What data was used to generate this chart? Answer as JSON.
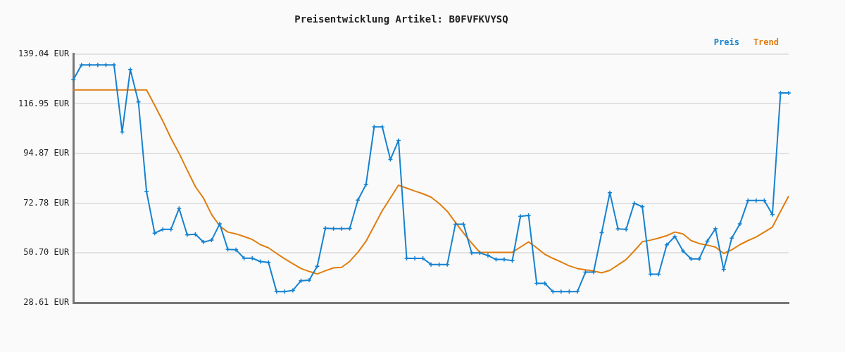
{
  "chart_data": {
    "type": "line",
    "title": "Preisentwicklung Artikel: B0FVFKVYSQ",
    "categories": [
      null,
      null,
      null,
      null,
      null,
      null,
      null,
      null,
      null,
      null,
      null,
      null,
      null,
      null,
      null,
      null,
      null,
      null,
      null,
      null,
      null,
      null,
      null,
      null,
      null,
      null,
      null,
      null,
      null,
      null,
      null,
      null,
      null,
      null,
      null,
      null,
      null,
      null,
      null,
      null,
      null,
      null,
      null,
      null,
      null,
      null,
      null,
      null,
      null,
      null,
      null,
      null,
      null,
      null,
      null,
      null,
      null,
      null,
      null,
      null,
      null,
      null,
      null,
      null,
      null,
      null,
      null,
      null,
      null,
      null,
      null,
      null,
      null,
      null,
      null,
      null,
      null,
      null,
      null,
      null,
      null,
      null,
      null,
      null,
      null,
      null,
      null,
      null,
      null
    ],
    "series": [
      {
        "name": "Preis",
        "color": "#1582d0",
        "marker": "cross",
        "values": [
          127.7,
          134.2,
          134.2,
          134.2,
          134.2,
          134.2,
          104.4,
          132.2,
          117.8,
          77.9,
          59.5,
          61.2,
          61.2,
          70.5,
          58.8,
          59.0,
          55.6,
          56.4,
          63.6,
          52.3,
          52.1,
          48.4,
          48.4,
          46.9,
          46.5,
          33.5,
          33.5,
          34.1,
          38.4,
          38.6,
          44.8,
          61.7,
          61.5,
          61.5,
          61.6,
          74.2,
          81.1,
          106.7,
          106.7,
          92.2,
          100.7,
          48.3,
          48.3,
          48.3,
          45.6,
          45.6,
          45.6,
          63.5,
          63.5,
          50.7,
          50.7,
          49.6,
          47.8,
          47.8,
          47.3,
          67.0,
          67.4,
          37.2,
          37.2,
          33.5,
          33.5,
          33.5,
          33.5,
          42.2,
          42.2,
          59.7,
          77.5,
          61.4,
          61.2,
          72.8,
          71.2,
          41.3,
          41.3,
          54.3,
          58.0,
          51.6,
          48.1,
          48.1,
          56.0,
          61.5,
          43.4,
          57.3,
          63.6,
          74.0,
          74.0,
          74.0,
          67.8,
          121.8,
          121.8
        ]
      },
      {
        "name": "Trend",
        "color": "#e07d10",
        "marker": "none",
        "values": [
          123.1,
          123.1,
          123.1,
          123.1,
          123.1,
          123.1,
          123.1,
          123.1,
          123.1,
          123.1,
          116.3,
          109.3,
          101.7,
          95.0,
          87.5,
          80.2,
          75.1,
          67.8,
          62.7,
          60.0,
          59.2,
          58.0,
          56.7,
          54.4,
          53.0,
          50.5,
          48.1,
          45.9,
          43.8,
          42.5,
          41.4,
          42.8,
          44.1,
          44.3,
          47.0,
          51.0,
          55.9,
          62.7,
          69.5,
          75.1,
          80.8,
          79.5,
          78.2,
          77.0,
          75.5,
          72.7,
          69.2,
          64.3,
          59.5,
          55.1,
          51.0,
          51.0,
          51.0,
          51.0,
          51.0,
          53.3,
          55.6,
          53.0,
          50.1,
          48.3,
          46.7,
          45.0,
          43.8,
          43.2,
          42.7,
          41.9,
          43.0,
          45.4,
          47.8,
          51.6,
          55.7,
          56.4,
          57.3,
          58.4,
          60.0,
          59.2,
          56.2,
          54.9,
          54.2,
          53.3,
          50.5,
          52.1,
          54.4,
          56.2,
          57.8,
          60.0,
          62.2,
          69.2,
          76.0
        ]
      }
    ],
    "ylim": [
      28.61,
      139.04
    ],
    "yticks": [
      {
        "value": 28.61,
        "label": "28.61 EUR"
      },
      {
        "value": 50.7,
        "label": "50.70 EUR"
      },
      {
        "value": 72.78,
        "label": "72.78 EUR"
      },
      {
        "value": 94.87,
        "label": "94.87 EUR"
      },
      {
        "value": 116.95,
        "label": "116.95 EUR"
      },
      {
        "value": 139.04,
        "label": "139.04 EUR"
      }
    ],
    "grid": "y",
    "legend": "top right",
    "tick_labels": "y"
  }
}
